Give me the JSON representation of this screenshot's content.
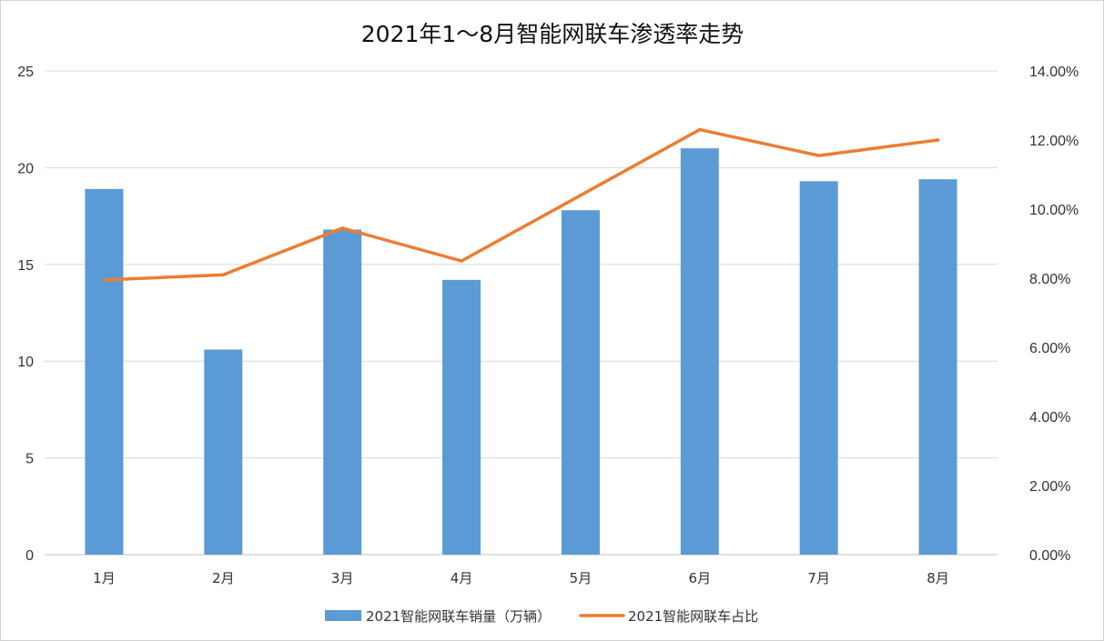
{
  "chart_data": {
    "type": "bar+line",
    "title": "2021年1～8月智能网联车渗透率走势",
    "categories": [
      "1月",
      "2月",
      "3月",
      "4月",
      "5月",
      "6月",
      "7月",
      "8月"
    ],
    "series": [
      {
        "name": "2021智能网联车销量（万辆）",
        "type": "bar",
        "axis": "left",
        "values": [
          18.9,
          10.6,
          16.8,
          14.2,
          17.8,
          21.0,
          19.3,
          19.4
        ],
        "color": "#5b9bd5"
      },
      {
        "name": "2021智能网联车占比",
        "type": "line",
        "axis": "right",
        "values": [
          0.0795,
          0.081,
          0.0945,
          0.085,
          0.104,
          0.123,
          0.1155,
          0.12
        ],
        "color": "#ed7d31"
      }
    ],
    "y_left": {
      "min": 0,
      "max": 25,
      "ticks": [
        "0",
        "5",
        "10",
        "15",
        "20",
        "25"
      ]
    },
    "y_right": {
      "min": 0,
      "max": 0.14,
      "ticks": [
        "0.00%",
        "2.00%",
        "4.00%",
        "6.00%",
        "8.00%",
        "10.00%",
        "12.00%",
        "14.00%"
      ]
    },
    "grid": true,
    "legend_position": "bottom"
  }
}
